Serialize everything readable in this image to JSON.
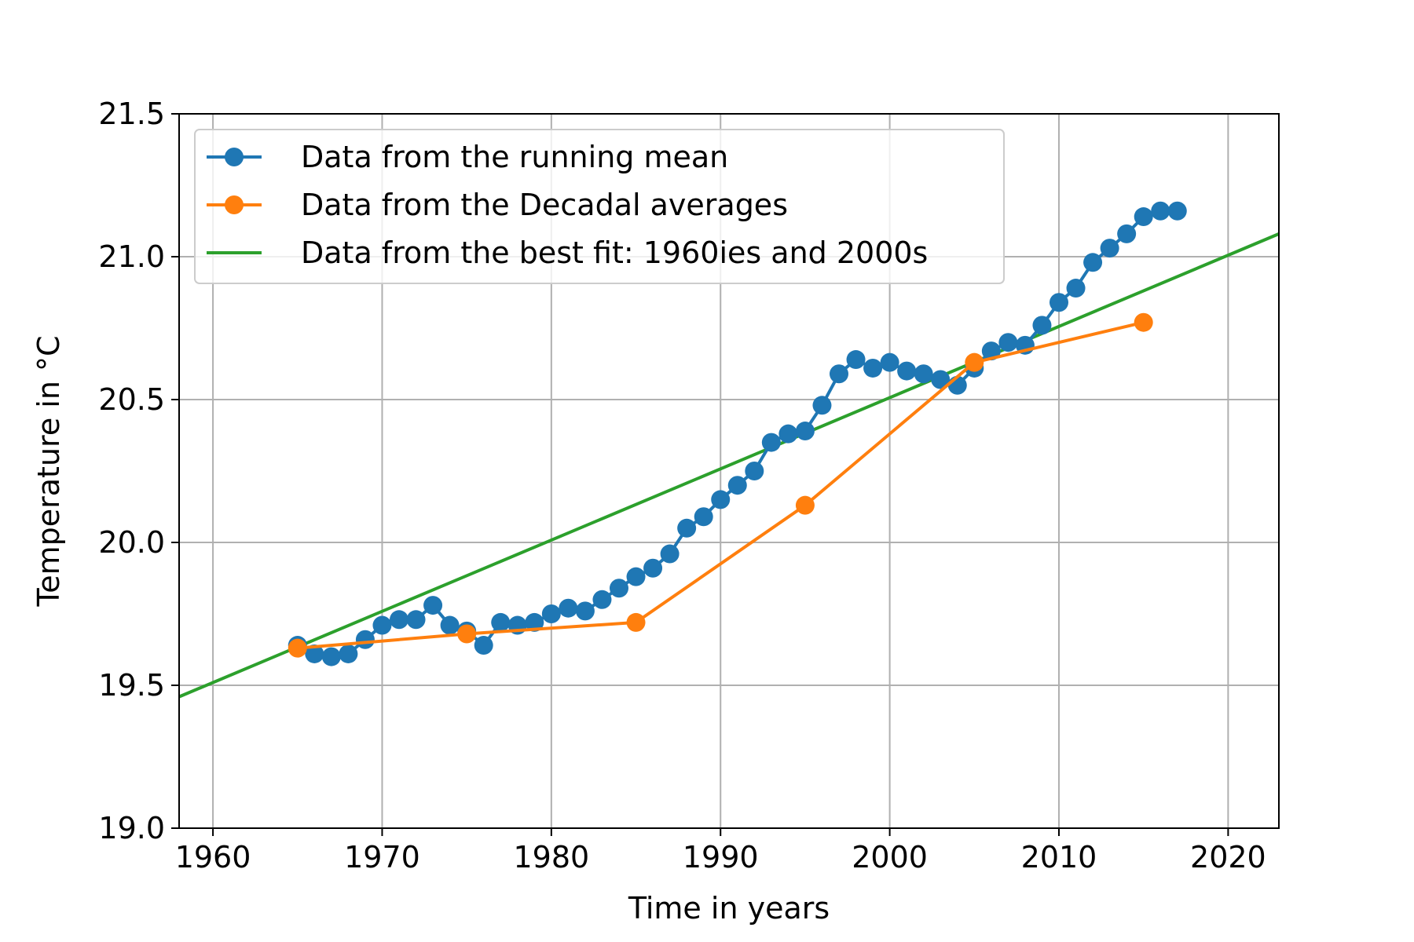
{
  "chart_data": {
    "type": "line",
    "title": "",
    "xlabel": "Time in years",
    "ylabel": "Temperature in °C",
    "xlim": [
      1958,
      2023
    ],
    "ylim": [
      19.0,
      21.5
    ],
    "xticks": [
      1960,
      1970,
      1980,
      1990,
      2000,
      2010,
      2020
    ],
    "yticks": [
      19.0,
      19.5,
      20.0,
      20.5,
      21.0,
      21.5
    ],
    "xtick_labels": [
      "1960",
      "1970",
      "1980",
      "1990",
      "2000",
      "2010",
      "2020"
    ],
    "ytick_labels": [
      "19.0",
      "19.5",
      "20.0",
      "20.5",
      "21.0",
      "21.5"
    ],
    "grid": true,
    "legend_position": "top-left",
    "series": [
      {
        "name": "Data from the running mean",
        "color": "#1f77b4",
        "marker": "circle",
        "x": [
          1965,
          1966,
          1967,
          1968,
          1969,
          1970,
          1971,
          1972,
          1973,
          1974,
          1975,
          1976,
          1977,
          1978,
          1979,
          1980,
          1981,
          1982,
          1983,
          1984,
          1985,
          1986,
          1987,
          1988,
          1989,
          1990,
          1991,
          1992,
          1993,
          1994,
          1995,
          1996,
          1997,
          1998,
          1999,
          2000,
          2001,
          2002,
          2003,
          2004,
          2005,
          2006,
          2007,
          2008,
          2009,
          2010,
          2011,
          2012,
          2013,
          2014,
          2015,
          2016,
          2017
        ],
        "y": [
          19.64,
          19.61,
          19.6,
          19.61,
          19.66,
          19.71,
          19.73,
          19.73,
          19.78,
          19.71,
          19.69,
          19.64,
          19.72,
          19.71,
          19.72,
          19.75,
          19.77,
          19.76,
          19.8,
          19.84,
          19.88,
          19.91,
          19.96,
          20.05,
          20.09,
          20.15,
          20.2,
          20.25,
          20.35,
          20.38,
          20.39,
          20.48,
          20.59,
          20.64,
          20.61,
          20.63,
          20.6,
          20.59,
          20.57,
          20.55,
          20.61,
          20.67,
          20.7,
          20.69,
          20.76,
          20.84,
          20.89,
          20.98,
          21.03,
          21.08,
          21.14,
          21.16,
          21.16
        ]
      },
      {
        "name": "Data from the Decadal averages",
        "color": "#ff7f0e",
        "marker": "circle",
        "x": [
          1965,
          1975,
          1985,
          1995,
          2005,
          2015
        ],
        "y": [
          19.63,
          19.68,
          19.72,
          20.13,
          20.63,
          20.77
        ]
      },
      {
        "name": "Data from the best fit: 1960ies and 2000s",
        "color": "#2ca02c",
        "marker": "none",
        "x": [
          1958,
          2023
        ],
        "y": [
          19.46,
          21.08
        ]
      }
    ]
  }
}
